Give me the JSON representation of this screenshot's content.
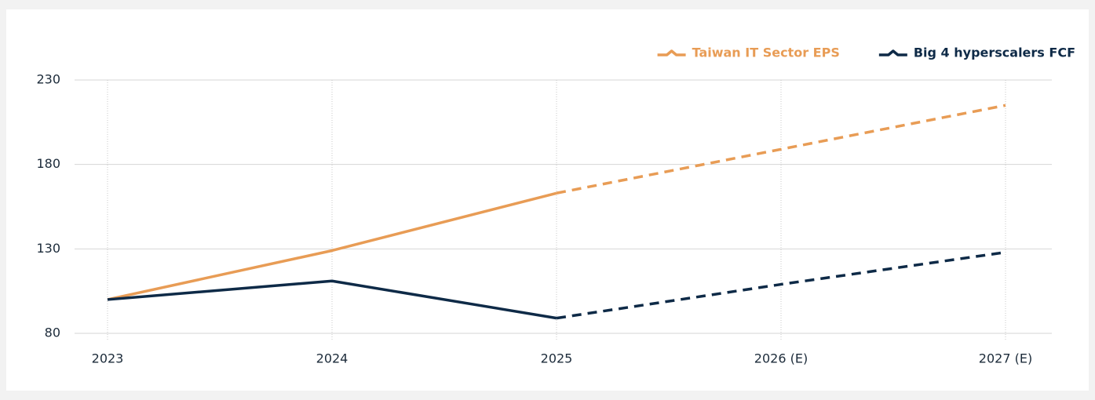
{
  "chart_data": {
    "type": "line",
    "categories": [
      "2023",
      "2024",
      "2025",
      "2026 (E)",
      "2027 (E)"
    ],
    "series": [
      {
        "name": "Taiwan IT Sector EPS",
        "color": "#e89c55",
        "values": [
          100,
          129,
          163,
          189,
          215
        ],
        "dashed_from": 2
      },
      {
        "name": "Big 4 hyperscalers FCF",
        "color": "#0e2a47",
        "values": [
          100,
          111,
          89,
          109,
          128
        ],
        "dashed_from": 2
      }
    ],
    "ylim": [
      80,
      230
    ],
    "yticks": [
      80,
      130,
      180,
      230
    ],
    "grid": true,
    "legend": "top-right"
  }
}
